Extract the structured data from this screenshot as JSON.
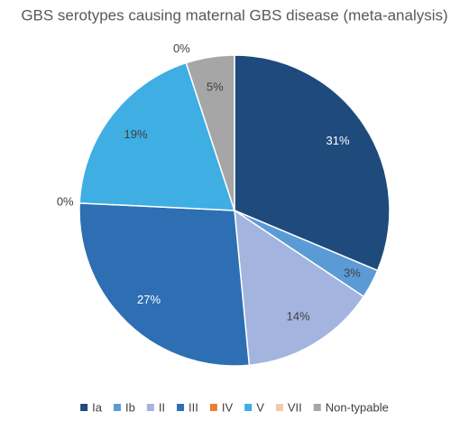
{
  "chart_data": {
    "type": "pie",
    "title": "GBS serotypes causing maternal GBS disease (meta-analysis)",
    "categories": [
      "Ia",
      "Ib",
      "II",
      "III",
      "IV",
      "V",
      "VII",
      "Non-typable"
    ],
    "values": [
      31,
      3,
      14,
      27,
      0,
      19,
      0,
      5
    ],
    "value_labels": [
      "31%",
      "3%",
      "14%",
      "27%",
      "0%",
      "19%",
      "0%",
      "5%"
    ],
    "colors": [
      "#1f4a7c",
      "#5b9bd5",
      "#a3b4de",
      "#2e6fb3",
      "#ed7d31",
      "#3eaee3",
      "#f6c7ae",
      "#a6a6a6"
    ],
    "legend": "bottom"
  }
}
